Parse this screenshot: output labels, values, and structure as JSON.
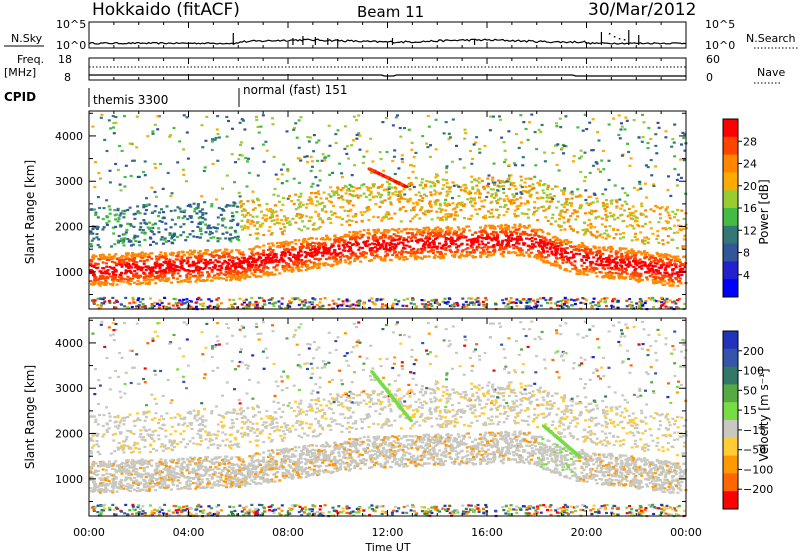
{
  "header": {
    "station": "Hokkaido (fitACF)",
    "beam": "Beam 11",
    "date": "30/Mar/2012"
  },
  "top_panels": {
    "nsky_label": "N.Sky",
    "nsky_ticks": [
      "10^5",
      "10^0"
    ],
    "nsearch_label": "N.Search",
    "nsearch_ticks": [
      "10^5",
      "10^0"
    ],
    "freq_label": "Freq.",
    "freq_unit": "[MHz]",
    "freq_ticks": [
      "18",
      "8"
    ],
    "nave_label": "Nave",
    "nave_ticks": [
      "60",
      "0"
    ],
    "cpid_label": "CPID",
    "cpid_segments": [
      {
        "label": "themis 3300",
        "start_hour": 0
      },
      {
        "label": "normal (fast) 151",
        "start_hour": 6
      }
    ]
  },
  "chart_data": [
    {
      "type": "heatmap",
      "panel": "power",
      "ylabel": "Slant Range [km]",
      "xlabel": "",
      "x_range_hours": [
        0,
        24
      ],
      "ylim": [
        180,
        4550
      ],
      "y_ticks": [
        1000,
        2000,
        3000,
        4000
      ],
      "colorbar_label": "Power [dB]",
      "colorbar_ticks": [
        "28",
        "24",
        "20",
        "16",
        "12",
        "8",
        "4"
      ],
      "colorbar_colors": [
        "#ff0000",
        "#ff4400",
        "#ff8800",
        "#ffaa00",
        "#99cc33",
        "#44bb44",
        "#337777",
        "#335599",
        "#2222cc",
        "#0000ff"
      ]
    },
    {
      "type": "heatmap",
      "panel": "velocity",
      "ylabel": "Slant Range [km]",
      "xlabel": "Time UT",
      "x_range_hours": [
        0,
        24
      ],
      "x_tick_labels": [
        "00:00",
        "04:00",
        "08:00",
        "12:00",
        "16:00",
        "20:00",
        "00:00"
      ],
      "ylim": [
        180,
        4550
      ],
      "y_ticks": [
        1000,
        2000,
        3000,
        4000
      ],
      "colorbar_label": "Velocity [m s⁻¹]",
      "colorbar_ticks": [
        "200",
        "100",
        "50",
        "15",
        "−15",
        "−50",
        "−100",
        "−200"
      ],
      "colorbar_colors": [
        "#2233bb",
        "#3355aa",
        "#337766",
        "#55aa44",
        "#77dd44",
        "#c8c8c0",
        "#ffcc33",
        "#ff9900",
        "#ff6600",
        "#ff0000"
      ]
    }
  ]
}
